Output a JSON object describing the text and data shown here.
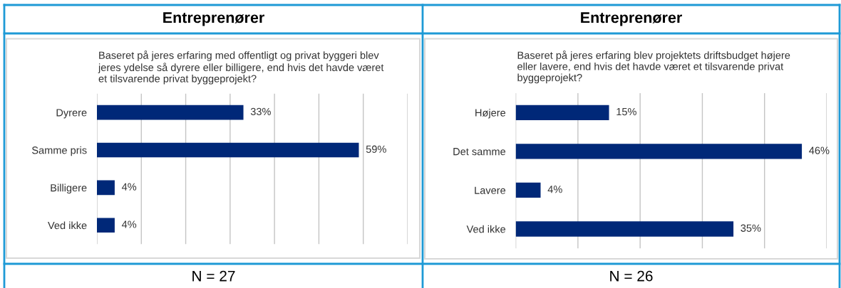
{
  "chart_data": [
    {
      "type": "bar",
      "orientation": "horizontal",
      "title": "Entreprenører",
      "subtitle": "Baseret på jeres erfaring med offentligt og privat byggeri blev\njeres ydelse så dyrere eller billigere, end hvis det havde været\net tilsvarende privat byggeprojekt?",
      "categories": [
        "Dyrere",
        "Samme pris",
        "Billigere",
        "Ved ikke"
      ],
      "values": [
        33,
        59,
        4,
        4
      ],
      "value_labels": [
        "33%",
        "59%",
        "4%",
        "4%"
      ],
      "color": "#002878",
      "xlim": [
        0,
        70
      ],
      "xticks": [
        {
          "value": 0,
          "label": null
        },
        {
          "value": 10,
          "label": null
        },
        {
          "value": 20,
          "label": null
        },
        {
          "value": 30,
          "label": null
        },
        {
          "value": 40,
          "label": null
        },
        {
          "value": 50,
          "label": null
        },
        {
          "value": 60,
          "label": null
        },
        {
          "value": 70,
          "label": null
        }
      ],
      "grid": "x",
      "tick_labels": "y",
      "annotations": [
        "N = 27"
      ]
    },
    {
      "type": "bar",
      "orientation": "horizontal",
      "title": "Entreprenører",
      "subtitle": "Baseret på jeres erfaring blev projektets driftsbudget højere\neller lavere, end hvis det havde været et tilsvarende privat\nbyggeprojekt?",
      "categories": [
        "Højere",
        "Det samme",
        "Lavere",
        "Ved ikke"
      ],
      "values": [
        15,
        46,
        4,
        35
      ],
      "value_labels": [
        "15%",
        "46%",
        "4%",
        "35%"
      ],
      "color": "#002878",
      "xlim": [
        0,
        50
      ],
      "xticks": [
        {
          "value": 0,
          "label": null
        },
        {
          "value": 10,
          "label": null
        },
        {
          "value": 20,
          "label": null
        },
        {
          "value": 30,
          "label": null
        },
        {
          "value": 40,
          "label": null
        },
        {
          "value": 50,
          "label": null
        }
      ],
      "grid": "x",
      "tick_labels": "y",
      "annotations": [
        "N = 26"
      ]
    }
  ]
}
